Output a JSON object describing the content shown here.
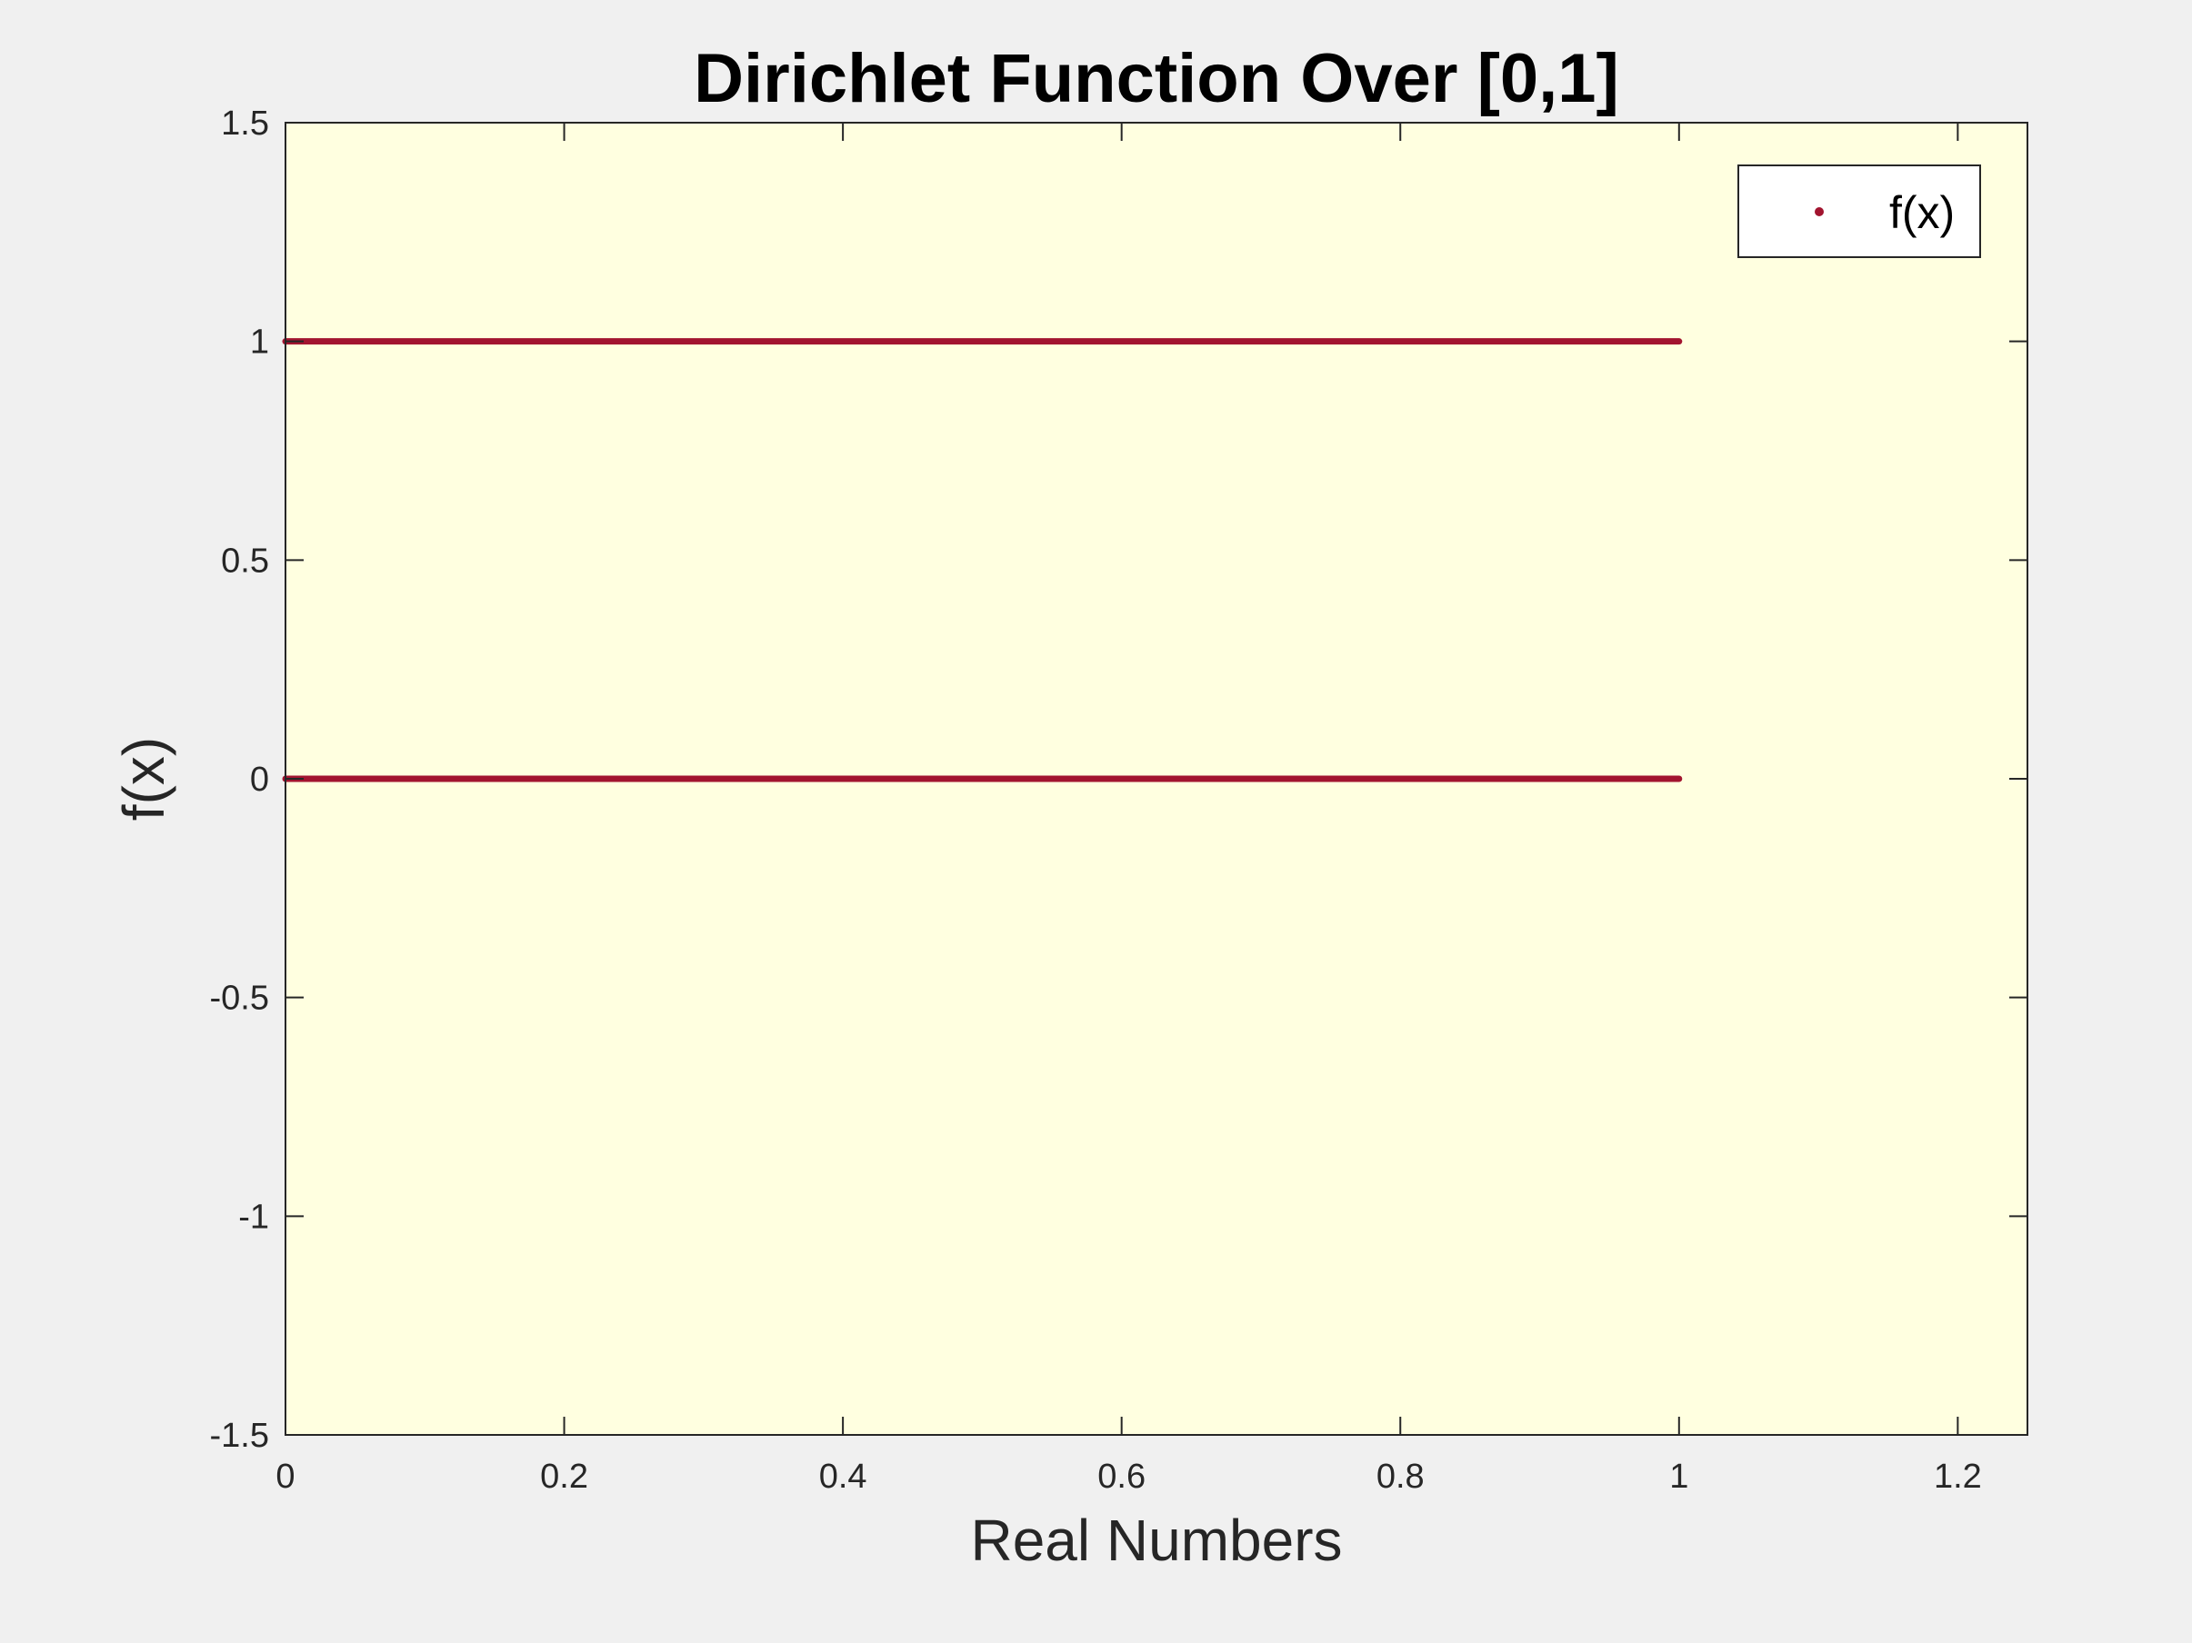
{
  "chart_data": {
    "type": "scatter",
    "title": "Dirichlet Function Over [0,1]",
    "xlabel": "Real Numbers",
    "ylabel": "f(x)",
    "xlim": [
      0,
      1.25
    ],
    "ylim": [
      -1.5,
      1.5
    ],
    "xticks": [
      0,
      0.2,
      0.4,
      0.6,
      0.8,
      1,
      1.2
    ],
    "xtick_labels": [
      "0",
      "0.2",
      "0.4",
      "0.6",
      "0.8",
      "1",
      "1.2"
    ],
    "yticks": [
      -1.5,
      -1,
      -0.5,
      0,
      0.5,
      1,
      1.5
    ],
    "ytick_labels": [
      "-1.5",
      "-1",
      "-0.5",
      "0",
      "0.5",
      "1",
      "1.5"
    ],
    "grid": false,
    "legend_position": "top-right",
    "series": [
      {
        "name": "f(x)",
        "color": "#a2142f",
        "marker": "dot",
        "segments": [
          {
            "x": [
              0,
              1
            ],
            "y": 1
          },
          {
            "x": [
              0,
              1
            ],
            "y": 0
          }
        ]
      }
    ],
    "colors": {
      "plot_background": "#ffffe0",
      "figure_background": "#f0f0f0",
      "axis_color": "#262626"
    }
  }
}
